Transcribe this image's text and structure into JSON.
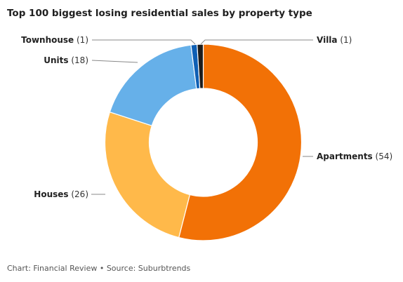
{
  "title": "Top 100 biggest losing residential sales by property type",
  "footer": "Chart: Financial Review • Source: Suburbtrends",
  "chart_data": {
    "type": "pie",
    "style": "donut",
    "title": "Top 100 biggest losing residential sales by property type",
    "slices": [
      {
        "label": "Apartments",
        "value": 54,
        "color": "#f27106"
      },
      {
        "label": "Houses",
        "value": 26,
        "color": "#ffb94a"
      },
      {
        "label": "Units",
        "value": 18,
        "color": "#66b0e9"
      },
      {
        "label": "Townhouse",
        "value": 1,
        "color": "#0e5fb4"
      },
      {
        "label": "Villa",
        "value": 1,
        "color": "#1c1c1c"
      }
    ]
  }
}
